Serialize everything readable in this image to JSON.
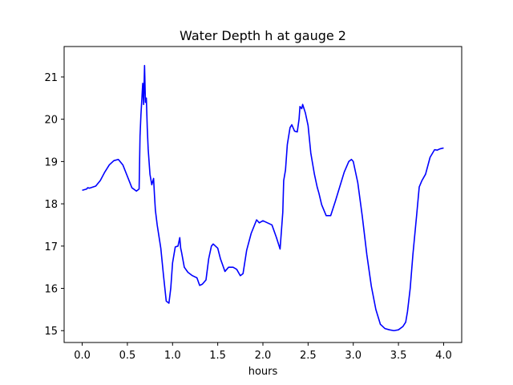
{
  "chart_data": {
    "type": "line",
    "title": "Water Depth h at gauge 2",
    "xlabel": "hours",
    "ylabel": "",
    "xlim": [
      -0.2,
      4.2
    ],
    "ylim": [
      14.72,
      21.72
    ],
    "xticks": [
      0.0,
      0.5,
      1.0,
      1.5,
      2.0,
      2.5,
      3.0,
      3.5,
      4.0
    ],
    "xtick_labels": [
      "0.0",
      "0.5",
      "1.0",
      "1.5",
      "2.0",
      "2.5",
      "3.0",
      "3.5",
      "4.0"
    ],
    "yticks": [
      15,
      16,
      17,
      18,
      19,
      20,
      21
    ],
    "ytick_labels": [
      "15",
      "16",
      "17",
      "18",
      "19",
      "20",
      "21"
    ],
    "grid": false,
    "series": [
      {
        "color": "#0000ff",
        "x": [
          0.0,
          0.05,
          0.06,
          0.08,
          0.15,
          0.2,
          0.25,
          0.3,
          0.35,
          0.4,
          0.45,
          0.5,
          0.55,
          0.6,
          0.63,
          0.64,
          0.65,
          0.67,
          0.68,
          0.69,
          0.7,
          0.71,
          0.72,
          0.73,
          0.75,
          0.77,
          0.79,
          0.8,
          0.81,
          0.83,
          0.87,
          0.9,
          0.93,
          0.96,
          0.98,
          1.0,
          1.03,
          1.06,
          1.08,
          1.09,
          1.1,
          1.13,
          1.17,
          1.22,
          1.27,
          1.3,
          1.33,
          1.37,
          1.4,
          1.43,
          1.45,
          1.5,
          1.53,
          1.58,
          1.62,
          1.67,
          1.71,
          1.75,
          1.78,
          1.82,
          1.87,
          1.93,
          1.96,
          2.0,
          2.05,
          2.1,
          2.15,
          2.19,
          2.22,
          2.23,
          2.25,
          2.27,
          2.3,
          2.32,
          2.35,
          2.38,
          2.4,
          2.41,
          2.43,
          2.44,
          2.47,
          2.5,
          2.53,
          2.57,
          2.6,
          2.62,
          2.65,
          2.7,
          2.75,
          2.8,
          2.85,
          2.9,
          2.95,
          2.98,
          3.0,
          3.05,
          3.1,
          3.15,
          3.2,
          3.25,
          3.3,
          3.35,
          3.4,
          3.45,
          3.5,
          3.55,
          3.58,
          3.6,
          3.63,
          3.66,
          3.7,
          3.73,
          3.76,
          3.8,
          3.85,
          3.9,
          3.93,
          3.96,
          4.0
        ],
        "y": [
          18.32,
          18.35,
          18.38,
          18.37,
          18.42,
          18.55,
          18.75,
          18.92,
          19.02,
          19.05,
          18.92,
          18.65,
          18.38,
          18.3,
          18.35,
          19.6,
          20.1,
          20.85,
          20.35,
          21.27,
          20.4,
          20.5,
          19.8,
          19.3,
          18.7,
          18.45,
          18.6,
          18.2,
          17.85,
          17.5,
          16.95,
          16.3,
          15.7,
          15.65,
          16.0,
          16.6,
          16.98,
          17.0,
          17.2,
          16.95,
          16.85,
          16.5,
          16.38,
          16.3,
          16.25,
          16.07,
          16.1,
          16.2,
          16.7,
          17.0,
          17.05,
          16.95,
          16.7,
          16.4,
          16.5,
          16.5,
          16.45,
          16.3,
          16.35,
          16.9,
          17.3,
          17.62,
          17.55,
          17.6,
          17.55,
          17.5,
          17.2,
          16.93,
          17.8,
          18.55,
          18.8,
          19.4,
          19.8,
          19.87,
          19.72,
          19.7,
          20.0,
          20.3,
          20.25,
          20.35,
          20.15,
          19.85,
          19.2,
          18.7,
          18.4,
          18.25,
          17.98,
          17.72,
          17.72,
          18.05,
          18.4,
          18.75,
          19.0,
          19.05,
          19.0,
          18.5,
          17.7,
          16.8,
          16.05,
          15.5,
          15.15,
          15.05,
          15.02,
          15.0,
          15.02,
          15.1,
          15.2,
          15.45,
          16.0,
          16.8,
          17.7,
          18.4,
          18.55,
          18.7,
          19.1,
          19.28,
          19.27,
          19.3,
          19.32
        ]
      }
    ]
  }
}
